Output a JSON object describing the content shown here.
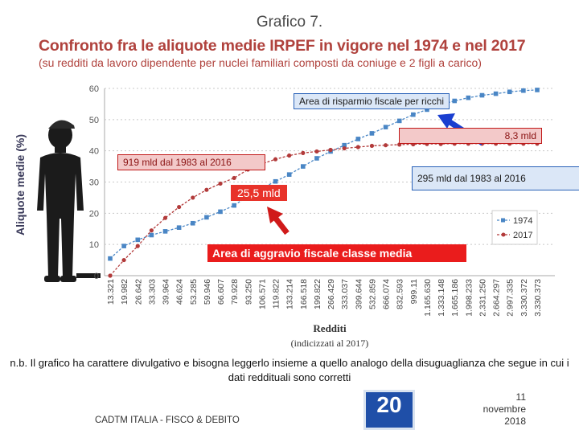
{
  "header": {
    "grafico": "Grafico 7.",
    "title": "Confronto fra le aliquote medie IRPEF in vigore nel 1974 e nel 2017",
    "subtitle": "(su redditi da lavoro dipendente per nuclei familiari composti da coniuge e 2 figli a carico)"
  },
  "chart_data": {
    "type": "line",
    "ylabel": "Aliquote medie (%)",
    "xlabel": "Redditi (indicizzati al 2017)",
    "ylim": [
      0,
      60
    ],
    "yticks": [
      0,
      10,
      20,
      30,
      40,
      50,
      60
    ],
    "categories": [
      "13.321",
      "19.982",
      "26.642",
      "33.303",
      "39.964",
      "46.624",
      "53.285",
      "59.946",
      "66.607",
      "79.928",
      "93.250",
      "106.571",
      "119.822",
      "133.214",
      "166.518",
      "199.822",
      "266.429",
      "333.037",
      "399.644",
      "532.859",
      "666.074",
      "832.593",
      "999.11",
      "1.165.630",
      "1.333.148",
      "1.665.186",
      "1.998.233",
      "2.331.250",
      "2.664.297",
      "2.997.335",
      "3.330.372",
      "3.330.373"
    ],
    "series": [
      {
        "name": "1974",
        "color": "#4a86c5",
        "marker": "square",
        "values": [
          5.5,
          9.5,
          11.5,
          13,
          14.2,
          15.4,
          16.8,
          18.7,
          20.5,
          22.5,
          25.5,
          28,
          30.2,
          32.4,
          35,
          37.6,
          39.8,
          41.8,
          43.8,
          45.6,
          47.6,
          49.6,
          51.6,
          53.2,
          54.8,
          56,
          57,
          57.8,
          58.3,
          58.9,
          59.3,
          59.5
        ]
      },
      {
        "name": "2017",
        "color": "#b23a3a",
        "marker": "circle",
        "values": [
          0,
          5,
          9.5,
          14.5,
          18.5,
          22,
          25,
          27.5,
          29.5,
          31.3,
          34,
          35.8,
          37.3,
          38.5,
          39.3,
          39.8,
          40.3,
          40.8,
          41.2,
          41.6,
          41.8,
          42,
          42.1,
          42.2,
          42.2,
          42.3,
          42.3,
          42.3,
          42.3,
          42.3,
          42.3,
          42.3
        ]
      }
    ],
    "legend_position": "right",
    "annotations": {
      "risparmio": "Area di risparmio fiscale per ricchi",
      "mld_83": "8,3 mld",
      "mld_919": "919 mld dal 1983 al 2016",
      "mld_295": "295 mld dal 1983 al 2016",
      "val_255": "25,5 mld",
      "aggravio": "Area di aggravio fiscale classe media"
    }
  },
  "note": "n.b. Il grafico ha carattere divulgativo e bisogna leggerlo insieme a quello analogo della disuguaglianza che segue in cui i dati reddituali sono corretti",
  "footer": {
    "left": "CADTM ITALIA - FISCO & DEBITO",
    "page": "20",
    "date_day": "11",
    "date_month": "novembre",
    "date_year": "2018"
  }
}
